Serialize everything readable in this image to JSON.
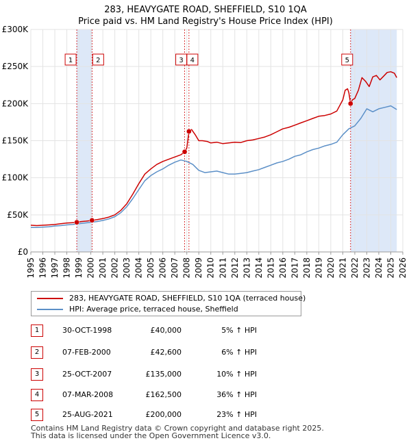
{
  "header": {
    "title": "283, HEAVYGATE ROAD, SHEFFIELD, S10 1QA",
    "subtitle": "Price paid vs. HM Land Registry's House Price Index (HPI)"
  },
  "colors": {
    "property": "#cc0000",
    "hpi": "#5b8fc7",
    "shade": "#dde8f8",
    "event": "#cc0000"
  },
  "chart_data": {
    "type": "line",
    "title": "283, HEAVYGATE ROAD, SHEFFIELD, S10 1QA",
    "subtitle": "Price paid vs. HM Land Registry's House Price Index (HPI)",
    "xlabel": "",
    "ylabel": "",
    "xlim": [
      1995,
      2026
    ],
    "ylim": [
      0,
      300000
    ],
    "x_ticks": [
      1995,
      1996,
      1997,
      1998,
      1999,
      2000,
      2001,
      2002,
      2003,
      2004,
      2005,
      2006,
      2007,
      2008,
      2009,
      2010,
      2011,
      2012,
      2013,
      2014,
      2015,
      2016,
      2017,
      2018,
      2019,
      2020,
      2021,
      2022,
      2023,
      2024,
      2025,
      2026
    ],
    "x_tick_labels": [
      "1995",
      "1996",
      "1997",
      "1998",
      "1999",
      "2000",
      "2001",
      "2002",
      "2003",
      "2004",
      "2005",
      "2006",
      "2007",
      "2008",
      "2009",
      "2010",
      "2011",
      "2012",
      "2013",
      "2014",
      "2015",
      "2016",
      "2017",
      "2018",
      "2019",
      "2020",
      "2021",
      "2022",
      "2023",
      "2024",
      "2025",
      "2026"
    ],
    "y_ticks": [
      0,
      50000,
      100000,
      150000,
      200000,
      250000,
      300000
    ],
    "y_tick_labels": [
      "£0",
      "£50K",
      "£100K",
      "£150K",
      "£200K",
      "£250K",
      "£300K"
    ],
    "grid": true,
    "shaded_ranges": [
      [
        1998.83,
        2000.1
      ],
      [
        2021.65,
        2025.5
      ]
    ],
    "series": [
      {
        "name": "283, HEAVYGATE ROAD, SHEFFIELD, S10 1QA (terraced house)",
        "x": [
          1995.0,
          1995.5,
          1996.0,
          1996.5,
          1997.0,
          1997.5,
          1998.0,
          1998.5,
          1998.83,
          1999.2,
          1999.6,
          2000.1,
          2000.5,
          2001.0,
          2001.5,
          2002.0,
          2002.5,
          2003.0,
          2003.5,
          2004.0,
          2004.5,
          2005.0,
          2005.5,
          2006.0,
          2006.5,
          2007.0,
          2007.5,
          2007.82,
          2008.0,
          2008.18,
          2008.4,
          2008.7,
          2009.0,
          2009.3,
          2009.7,
          2010.0,
          2010.5,
          2011.0,
          2011.5,
          2012.0,
          2012.5,
          2013.0,
          2013.5,
          2014.0,
          2014.5,
          2015.0,
          2015.5,
          2016.0,
          2016.5,
          2017.0,
          2017.5,
          2018.0,
          2018.5,
          2019.0,
          2019.5,
          2020.0,
          2020.5,
          2021.0,
          2021.2,
          2021.4,
          2021.5,
          2021.65,
          2021.8,
          2022.0,
          2022.3,
          2022.6,
          2022.9,
          2023.2,
          2023.5,
          2023.8,
          2024.1,
          2024.4,
          2024.7,
          2025.0,
          2025.3,
          2025.5
        ],
        "y": [
          36000,
          35500,
          36000,
          36500,
          37000,
          38000,
          39000,
          39500,
          40000,
          41000,
          41500,
          42600,
          43500,
          45000,
          47000,
          50000,
          56000,
          65000,
          78000,
          92000,
          105000,
          112000,
          118000,
          122000,
          125000,
          128000,
          131000,
          135000,
          140000,
          162500,
          165000,
          158000,
          150000,
          150000,
          149000,
          147000,
          148000,
          146000,
          147000,
          148000,
          147500,
          150000,
          151000,
          153000,
          155000,
          158000,
          162000,
          166000,
          168000,
          171000,
          174000,
          177000,
          180000,
          183000,
          184000,
          186000,
          190000,
          205000,
          218000,
          220000,
          215000,
          200000,
          205000,
          207000,
          218000,
          235000,
          230000,
          223000,
          236000,
          238000,
          232000,
          237000,
          242000,
          243000,
          241000,
          235000
        ]
      },
      {
        "name": "HPI: Average price, terraced house, Sheffield",
        "x": [
          1995.0,
          1995.5,
          1996.0,
          1996.5,
          1997.0,
          1997.5,
          1998.0,
          1998.5,
          1999.0,
          1999.5,
          2000.0,
          2000.5,
          2001.0,
          2001.5,
          2002.0,
          2002.5,
          2003.0,
          2003.5,
          2004.0,
          2004.5,
          2005.0,
          2005.5,
          2006.0,
          2006.5,
          2007.0,
          2007.5,
          2008.0,
          2008.5,
          2009.0,
          2009.5,
          2010.0,
          2010.5,
          2011.0,
          2011.5,
          2012.0,
          2012.5,
          2013.0,
          2013.5,
          2014.0,
          2014.5,
          2015.0,
          2015.5,
          2016.0,
          2016.5,
          2017.0,
          2017.5,
          2018.0,
          2018.5,
          2019.0,
          2019.5,
          2020.0,
          2020.5,
          2021.0,
          2021.5,
          2022.0,
          2022.5,
          2023.0,
          2023.5,
          2024.0,
          2024.5,
          2025.0,
          2025.5
        ],
        "y": [
          33000,
          33000,
          33500,
          34000,
          35000,
          35500,
          36500,
          37000,
          38000,
          39000,
          40000,
          41000,
          42500,
          44500,
          47500,
          53000,
          61000,
          72000,
          84000,
          96000,
          103000,
          108000,
          112000,
          117000,
          121000,
          124000,
          122000,
          118000,
          110000,
          107000,
          108000,
          109000,
          107000,
          105000,
          105000,
          106000,
          107000,
          109000,
          111000,
          114000,
          117000,
          120000,
          122000,
          125000,
          129000,
          131000,
          135000,
          138000,
          140000,
          143000,
          145000,
          148000,
          158000,
          166000,
          170000,
          180000,
          193000,
          189000,
          193000,
          195000,
          197000,
          192000
        ]
      }
    ],
    "events": [
      {
        "label": "1",
        "x": 1998.83,
        "y": 40000
      },
      {
        "label": "2",
        "x": 2000.1,
        "y": 42600
      },
      {
        "label": "3",
        "x": 2007.82,
        "y": 135000
      },
      {
        "label": "4",
        "x": 2008.18,
        "y": 162500
      },
      {
        "label": "5",
        "x": 2021.65,
        "y": 200000
      }
    ]
  },
  "legend": {
    "property_label": "283, HEAVYGATE ROAD, SHEFFIELD, S10 1QA (terraced house)",
    "hpi_label": "HPI: Average price, terraced house, Sheffield"
  },
  "transactions": [
    {
      "num": "1",
      "date": "30-OCT-1998",
      "price": "£40,000",
      "hpi": "5% ↑ HPI"
    },
    {
      "num": "2",
      "date": "07-FEB-2000",
      "price": "£42,600",
      "hpi": "6% ↑ HPI"
    },
    {
      "num": "3",
      "date": "25-OCT-2007",
      "price": "£135,000",
      "hpi": "10% ↑ HPI"
    },
    {
      "num": "4",
      "date": "07-MAR-2008",
      "price": "£162,500",
      "hpi": "36% ↑ HPI"
    },
    {
      "num": "5",
      "date": "25-AUG-2021",
      "price": "£200,000",
      "hpi": "23% ↑ HPI"
    }
  ],
  "footer": {
    "line1": "Contains HM Land Registry data © Crown copyright and database right 2025.",
    "line2": "This data is licensed under the Open Government Licence v3.0."
  }
}
